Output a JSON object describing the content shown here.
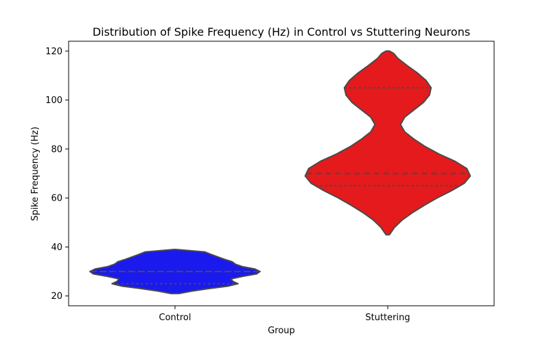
{
  "chart_data": {
    "type": "violin",
    "title": "Distribution of Spike Frequency (Hz) in Control vs Stuttering Neurons",
    "xlabel": "Group",
    "ylabel": "Spike Frequency (Hz)",
    "ylim": [
      16,
      124
    ],
    "yticks": [
      20,
      40,
      60,
      80,
      100,
      120
    ],
    "grid": false,
    "categories": [
      "Control",
      "Stuttering"
    ],
    "violins": [
      {
        "category": "Control",
        "color": "#1a1aef",
        "min": 21,
        "max": 39,
        "quartiles": [
          25,
          30,
          30
        ],
        "profile": [
          [
            21,
            0.05
          ],
          [
            22,
            0.2
          ],
          [
            23,
            0.4
          ],
          [
            24,
            0.62
          ],
          [
            25,
            0.74
          ],
          [
            26,
            0.68
          ],
          [
            27,
            0.66
          ],
          [
            28,
            0.8
          ],
          [
            29,
            0.96
          ],
          [
            30,
            1.0
          ],
          [
            31,
            0.94
          ],
          [
            32,
            0.79
          ],
          [
            33,
            0.71
          ],
          [
            34,
            0.67
          ],
          [
            35,
            0.58
          ],
          [
            36,
            0.5
          ],
          [
            37,
            0.42
          ],
          [
            38,
            0.35
          ],
          [
            39,
            0.01
          ]
        ]
      },
      {
        "category": "Stuttering",
        "color": "#e41a1c",
        "min": 45,
        "max": 120,
        "quartiles": [
          65,
          70,
          105
        ],
        "profile": [
          [
            45,
            0.02
          ],
          [
            48,
            0.08
          ],
          [
            51,
            0.17
          ],
          [
            54,
            0.29
          ],
          [
            57,
            0.43
          ],
          [
            60,
            0.58
          ],
          [
            63,
            0.75
          ],
          [
            66,
            0.9
          ],
          [
            69,
            0.97
          ],
          [
            72,
            0.93
          ],
          [
            75,
            0.79
          ],
          [
            78,
            0.6
          ],
          [
            81,
            0.44
          ],
          [
            84,
            0.31
          ],
          [
            87,
            0.2
          ],
          [
            90,
            0.15
          ],
          [
            93,
            0.2
          ],
          [
            96,
            0.31
          ],
          [
            99,
            0.42
          ],
          [
            102,
            0.49
          ],
          [
            105,
            0.51
          ],
          [
            108,
            0.45
          ],
          [
            111,
            0.35
          ],
          [
            114,
            0.23
          ],
          [
            117,
            0.12
          ],
          [
            119,
            0.07
          ],
          [
            120,
            0.02
          ]
        ]
      }
    ]
  }
}
